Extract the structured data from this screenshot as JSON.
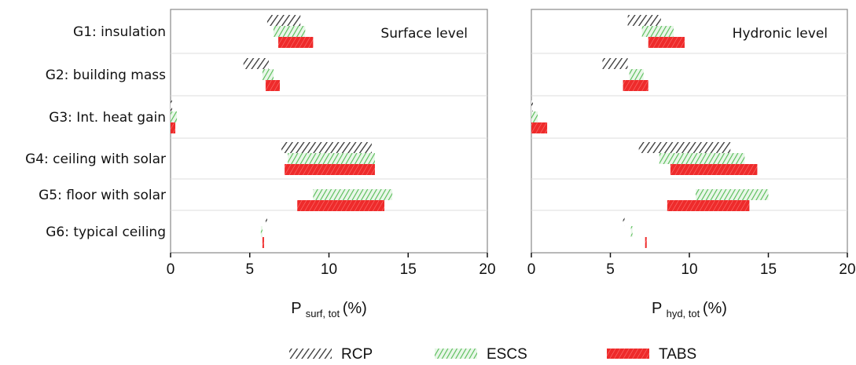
{
  "chart_data": {
    "type": "bar",
    "subtype": "floating-range-horizontal",
    "categories": [
      "G1: insulation",
      "G2: building mass",
      "G3: Int. heat gain",
      "G4: ceiling with solar",
      "G5: floor with solar",
      "G6: typical ceiling"
    ],
    "series_colors": {
      "RCP": "#333333",
      "ESCS": "#55bb55",
      "TABS": "#ee2b2b"
    },
    "legend": [
      {
        "name": "RCP",
        "color": "#333333"
      },
      {
        "name": "ESCS",
        "color": "#55bb55"
      },
      {
        "name": "TABS",
        "color": "#ee2b2b"
      }
    ],
    "legend_position": "bottom",
    "panels": [
      {
        "label": "Surface level",
        "xlabel": "P",
        "xlabel_sub": "surf, tot",
        "xlabel_unit": "(%)",
        "xlim": [
          0,
          20
        ],
        "xticks": [
          "0",
          "5",
          "10",
          "15",
          "20"
        ],
        "grid": false,
        "series": [
          {
            "name": "RCP",
            "ranges": [
              [
                6.1,
                8.2
              ],
              [
                4.6,
                6.2
              ],
              [
                0.0,
                0.1
              ],
              [
                7.0,
                12.7
              ],
              [
                0,
                0
              ],
              [
                6.0,
                6.1
              ]
            ]
          },
          {
            "name": "ESCS",
            "ranges": [
              [
                6.5,
                8.5
              ],
              [
                5.8,
                6.5
              ],
              [
                0.0,
                0.4
              ],
              [
                7.4,
                12.9
              ],
              [
                9.0,
                14.0
              ],
              [
                5.7,
                5.8
              ]
            ]
          },
          {
            "name": "TABS",
            "ranges": [
              [
                6.8,
                9.0
              ],
              [
                6.0,
                6.9
              ],
              [
                0.0,
                0.3
              ],
              [
                7.2,
                12.9
              ],
              [
                8.0,
                13.5
              ],
              [
                5.8,
                5.9
              ]
            ]
          }
        ]
      },
      {
        "label": "Hydronic level",
        "xlabel": "P",
        "xlabel_sub": "hyd, tot",
        "xlabel_unit": "(%)",
        "xlim": [
          0,
          20
        ],
        "xticks": [
          "0",
          "5",
          "10",
          "15",
          "20"
        ],
        "grid": false,
        "series": [
          {
            "name": "RCP",
            "ranges": [
              [
                6.1,
                8.2
              ],
              [
                4.5,
                6.1
              ],
              [
                0.0,
                0.1
              ],
              [
                6.8,
                12.6
              ],
              [
                0,
                0
              ],
              [
                5.8,
                5.9
              ]
            ]
          },
          {
            "name": "ESCS",
            "ranges": [
              [
                7.0,
                9.0
              ],
              [
                6.2,
                7.1
              ],
              [
                0.0,
                0.4
              ],
              [
                8.1,
                13.5
              ],
              [
                10.4,
                15.0
              ],
              [
                6.3,
                6.4
              ]
            ]
          },
          {
            "name": "TABS",
            "ranges": [
              [
                7.4,
                9.7
              ],
              [
                5.8,
                7.4
              ],
              [
                0.0,
                1.0
              ],
              [
                8.8,
                14.3
              ],
              [
                8.6,
                13.8
              ],
              [
                7.2,
                7.3
              ]
            ]
          }
        ]
      }
    ]
  }
}
